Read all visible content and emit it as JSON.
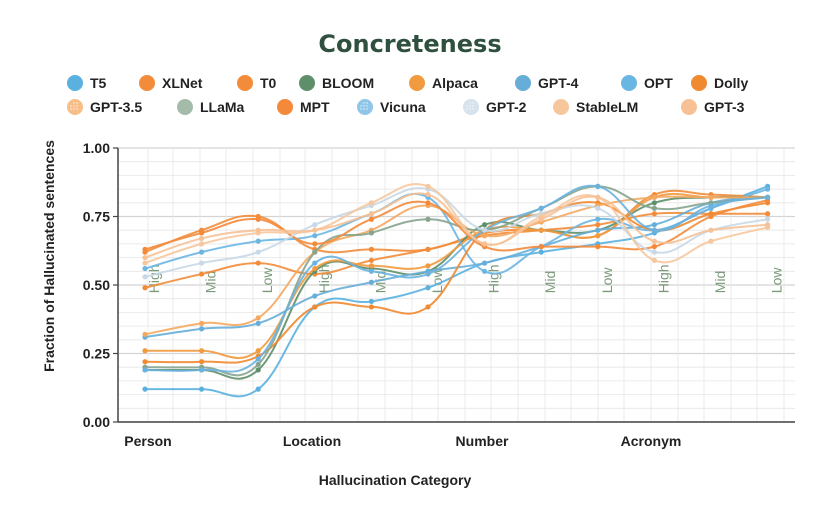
{
  "chart_data": {
    "type": "line",
    "title": "Concreteness",
    "xlabel": "Hallucination Category",
    "ylabel": "Fraction of Hallucinated sentences",
    "ylim": [
      0,
      1
    ],
    "y_ticks": [
      "0.00",
      "0.25",
      "0.50",
      "0.75",
      "1.00"
    ],
    "categories": [
      "Person",
      "Location",
      "Number",
      "Acronym"
    ],
    "levels": [
      "High",
      "Mid",
      "Low"
    ],
    "grid": true,
    "legend_position": "top",
    "x": [
      "Person-High",
      "Person-Mid",
      "Person-Low",
      "Location-High",
      "Location-Mid",
      "Location-Low",
      "Number-High",
      "Number-Mid",
      "Number-Low",
      "Acronym-High",
      "Acronym-Mid",
      "Acronym-Low"
    ],
    "series": [
      {
        "name": "T5",
        "color": "#5ab1e0",
        "pattern": "solid",
        "values": [
          0.12,
          0.12,
          0.12,
          0.42,
          0.44,
          0.49,
          0.58,
          0.62,
          0.65,
          0.69,
          0.78,
          0.86
        ]
      },
      {
        "name": "XLNet",
        "color": "#f28c3a",
        "pattern": "solid",
        "values": [
          0.62,
          0.7,
          0.75,
          0.63,
          0.63,
          0.63,
          0.69,
          0.7,
          0.68,
          0.83,
          0.83,
          0.82
        ]
      },
      {
        "name": "T0",
        "color": "#f28c3a",
        "pattern": "solid",
        "values": [
          0.49,
          0.54,
          0.58,
          0.54,
          0.59,
          0.63,
          0.68,
          0.7,
          0.72,
          0.76,
          0.76,
          0.76
        ]
      },
      {
        "name": "BLOOM",
        "color": "#5f8f6a",
        "pattern": "solid",
        "values": [
          0.19,
          0.19,
          0.19,
          0.55,
          0.56,
          0.55,
          0.72,
          0.7,
          0.7,
          0.8,
          0.82,
          0.82
        ]
      },
      {
        "name": "Alpaca",
        "color": "#f29a3e",
        "pattern": "solid",
        "values": [
          0.26,
          0.26,
          0.26,
          0.56,
          0.57,
          0.57,
          0.7,
          0.7,
          0.68,
          0.82,
          0.82,
          0.82
        ]
      },
      {
        "name": "GPT-4",
        "color": "#66aed8",
        "pattern": "solid",
        "values": [
          0.31,
          0.34,
          0.36,
          0.46,
          0.51,
          0.55,
          0.58,
          0.64,
          0.7,
          0.72,
          0.8,
          0.82
        ]
      },
      {
        "name": "OPT",
        "color": "#6ab6e3",
        "pattern": "solid",
        "values": [
          0.56,
          0.62,
          0.66,
          0.68,
          0.76,
          0.82,
          0.55,
          0.64,
          0.74,
          0.7,
          0.78,
          0.85
        ]
      },
      {
        "name": "Dolly",
        "color": "#f08a30",
        "pattern": "solid",
        "values": [
          0.22,
          0.22,
          0.24,
          0.42,
          0.42,
          0.42,
          0.7,
          0.76,
          0.8,
          0.7,
          0.76,
          0.8
        ]
      },
      {
        "name": "GPT-3.5",
        "color": "#f4a860",
        "pattern": "dots",
        "values": [
          0.32,
          0.36,
          0.38,
          0.62,
          0.7,
          0.79,
          0.68,
          0.73,
          0.79,
          0.82,
          0.82,
          0.82
        ]
      },
      {
        "name": "LLaMa",
        "color": "#86a48e",
        "pattern": "hatch",
        "values": [
          0.2,
          0.2,
          0.21,
          0.62,
          0.69,
          0.74,
          0.7,
          0.78,
          0.86,
          0.78,
          0.8,
          0.82
        ]
      },
      {
        "name": "MPT",
        "color": "#f4893a",
        "pattern": "solid",
        "values": [
          0.63,
          0.69,
          0.74,
          0.65,
          0.74,
          0.8,
          0.64,
          0.64,
          0.64,
          0.64,
          0.75,
          0.81
        ]
      },
      {
        "name": "Vicuna",
        "color": "#6ab3df",
        "pattern": "dots",
        "values": [
          0.19,
          0.19,
          0.23,
          0.58,
          0.55,
          0.54,
          0.7,
          0.78,
          0.86,
          0.7,
          0.79,
          0.82
        ]
      },
      {
        "name": "GPT-2",
        "color": "#c8d8e6",
        "pattern": "dots",
        "values": [
          0.53,
          0.58,
          0.62,
          0.72,
          0.79,
          0.85,
          0.7,
          0.76,
          0.78,
          0.62,
          0.7,
          0.74
        ]
      },
      {
        "name": "StableLM",
        "color": "#f6c79c",
        "pattern": "solid",
        "values": [
          0.58,
          0.65,
          0.69,
          0.7,
          0.8,
          0.86,
          0.65,
          0.75,
          0.82,
          0.59,
          0.66,
          0.71
        ]
      },
      {
        "name": "GPT-3",
        "color": "#f7c195",
        "pattern": "solid",
        "values": [
          0.6,
          0.67,
          0.7,
          0.7,
          0.76,
          0.83,
          0.65,
          0.74,
          0.82,
          0.66,
          0.7,
          0.72
        ]
      }
    ]
  }
}
